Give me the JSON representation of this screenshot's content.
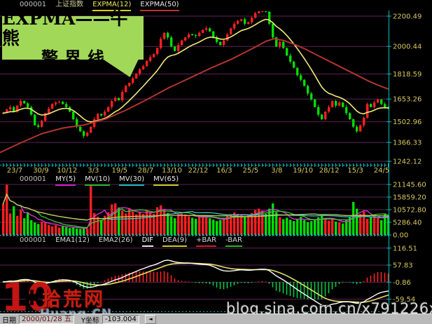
{
  "colors": {
    "background": "#000000",
    "grid": "#5e2158",
    "axis": "#00bcbc",
    "axis_label": "#d8c860",
    "candle_up": "#ff2020",
    "candle_down": "#00dd00",
    "expma12": "#f2ec78",
    "expma50": "#b23430",
    "mv5": "#d838d8",
    "mv10": "#38c838",
    "mv30": "#38c8c8",
    "mv65": "#c8c858",
    "dif": "#ffffff",
    "dea": "#e6e060",
    "bar_pos": "#ff2020",
    "bar_neg": "#00cc44",
    "callout_bg": "#a2d858",
    "header_code": "#c0c0c0",
    "header_name": "#cfcf9a"
  },
  "callout": {
    "line1": "EXPMA——牛熊",
    "line2": "警界线"
  },
  "pane1_header": {
    "code": "000001",
    "name": "上证指数",
    "indicators": [
      {
        "label": "EXPMA(12)",
        "text_color": "#f0e860",
        "underline": "#d8d000"
      },
      {
        "label": "EXPMA(50)",
        "text_color": "#e8e8e8",
        "underline": "#c03030"
      }
    ]
  },
  "pane2_header": {
    "code": "000001",
    "indicators": [
      {
        "label": "MY(5)",
        "text_color": "#e8e8e8",
        "underline": "#cc22cc"
      },
      {
        "label": "MV(10)",
        "text_color": "#e8e8e8",
        "underline": "#22bb22"
      },
      {
        "label": "MV(30)",
        "text_color": "#e8e8e8",
        "underline": "#22bbbb"
      },
      {
        "label": "MV(65)",
        "text_color": "#e8e8e8",
        "underline": "#cccc22"
      }
    ]
  },
  "pane3_header": {
    "code": "000001",
    "indicators": [
      {
        "label": "EMA1(12)",
        "text_color": "#d8d8d8",
        "underline": ""
      },
      {
        "label": "EMA2(26)",
        "text_color": "#d8d8d8",
        "underline": ""
      },
      {
        "label": "DIF",
        "text_color": "#ffffff",
        "underline": "#e8e8e8"
      },
      {
        "label": "DEA(9)",
        "text_color": "#d8d8d8",
        "underline": "#cccc22"
      },
      {
        "label": "+BAR",
        "text_color": "#d8d8d8",
        "underline": "#cc2222"
      },
      {
        "label": "-BAR",
        "text_color": "#d8d8d8",
        "underline": "#22bb22"
      }
    ]
  },
  "chart_data": {
    "type": "candlestick",
    "title": "000001 上证指数 EXPMA(12) EXPMA(50)",
    "x_dates": [
      "23/7",
      "30/9",
      "10/12",
      "3/3",
      "19/5",
      "28/7",
      "13/10",
      "22/12",
      "16/3",
      "25/5",
      "3/8",
      "19/10",
      "28/12",
      "15/3",
      "24/5"
    ],
    "price_axis_labels": [
      "2200.49",
      "2000.44",
      "1818.59",
      "1653.26",
      "1502.96",
      "1366.33",
      "1242.12"
    ],
    "volume_axis_labels": [
      "21145.60",
      "15859.20",
      "10572.80",
      "5286.40",
      "0.00"
    ],
    "macd_axis_labels": [
      "116.51",
      "57.83",
      "-0.86",
      "-59.54"
    ],
    "macd_params": [
      12,
      26,
      9
    ],
    "wick_pattern": [
      10,
      4,
      14,
      6,
      2,
      12,
      5,
      8
    ],
    "closes": [
      1560,
      1585,
      1600,
      1570,
      1610,
      1640,
      1625,
      1600,
      1550,
      1480,
      1470,
      1510,
      1560,
      1590,
      1620,
      1630,
      1635,
      1620,
      1600,
      1570,
      1520,
      1470,
      1440,
      1410,
      1430,
      1470,
      1520,
      1555,
      1545,
      1570,
      1600,
      1640,
      1660,
      1645,
      1700,
      1740,
      1760,
      1790,
      1820,
      1850,
      1870,
      1905,
      1930,
      1950,
      1990,
      2050,
      2090,
      2060,
      2000,
      1970,
      2010,
      2040,
      2060,
      2080,
      2075,
      2070,
      2090,
      2110,
      2120,
      2100,
      2060,
      2030,
      2010,
      2040,
      2080,
      2120,
      2150,
      2170,
      2180,
      2150,
      2160,
      2190,
      2220,
      2235,
      2240,
      2230,
      2150,
      2060,
      2000,
      2030,
      1990,
      1940,
      1900,
      1860,
      1810,
      1780,
      1740,
      1690,
      1650,
      1600,
      1550,
      1520,
      1570,
      1600,
      1640,
      1610,
      1630,
      1600,
      1560,
      1520,
      1470,
      1440,
      1480,
      1530,
      1620,
      1600,
      1630,
      1650,
      1620,
      1600,
      1590
    ],
    "volumes": [
      13000,
      21000,
      9000,
      12000,
      8000,
      10500,
      7000,
      9500,
      6200,
      5200,
      4600,
      5600,
      5100,
      4200,
      3600,
      4100,
      3100,
      3600,
      3300,
      2900,
      3100,
      2700,
      2500,
      2900,
      2600,
      21100,
      9200,
      7600,
      6200,
      8000,
      9500,
      12800,
      13200,
      11500,
      10200,
      9000,
      11200,
      9800,
      8600,
      9400,
      8800,
      10400,
      9600,
      8800,
      11600,
      12400,
      10800,
      9200,
      7800,
      7000,
      8200,
      9000,
      8600,
      7800,
      7200,
      6800,
      7400,
      8200,
      7800,
      7000,
      6400,
      5800,
      6200,
      7000,
      7800,
      8600,
      9400,
      8800,
      8200,
      7600,
      8400,
      9200,
      10400,
      11000,
      10200,
      8800,
      11000,
      13200,
      9600,
      7400,
      6600,
      7200,
      6400,
      5800,
      6800,
      7600,
      6200,
      5400,
      5800,
      6600,
      7400,
      8200,
      6800,
      6000,
      6600,
      5600,
      5200,
      4800,
      6200,
      7400,
      13800,
      11000,
      8800,
      9800,
      6800,
      7600,
      8400,
      7000,
      6200,
      9000,
      7600
    ],
    "expma50_anchors": [
      [
        0,
        1300
      ],
      [
        30,
        1365
      ],
      [
        60,
        1425
      ],
      [
        90,
        1462
      ],
      [
        120,
        1482
      ],
      [
        150,
        1520
      ],
      [
        180,
        1580
      ],
      [
        210,
        1650
      ],
      [
        240,
        1725
      ],
      [
        270,
        1790
      ],
      [
        300,
        1855
      ],
      [
        330,
        1915
      ],
      [
        360,
        1985
      ],
      [
        380,
        2035
      ],
      [
        392,
        2052
      ],
      [
        405,
        2040
      ],
      [
        420,
        2015
      ],
      [
        435,
        1985
      ],
      [
        450,
        1950
      ],
      [
        465,
        1915
      ],
      [
        480,
        1880
      ],
      [
        495,
        1845
      ],
      [
        510,
        1810
      ],
      [
        525,
        1775
      ],
      [
        540,
        1745
      ],
      [
        554,
        1720
      ]
    ]
  },
  "status_bar": {
    "date_label": "日期",
    "date_value": "2000/01/28 五",
    "y_label": "Y坐标",
    "y_value": "-103.004",
    "scroll_button": "◄"
  },
  "watermark": {
    "number": "10",
    "gear": "✱",
    "site": "拾荒网",
    "sub": "Huang.CN",
    "blog": "blog.sina.com.cn/x791226xubin"
  }
}
